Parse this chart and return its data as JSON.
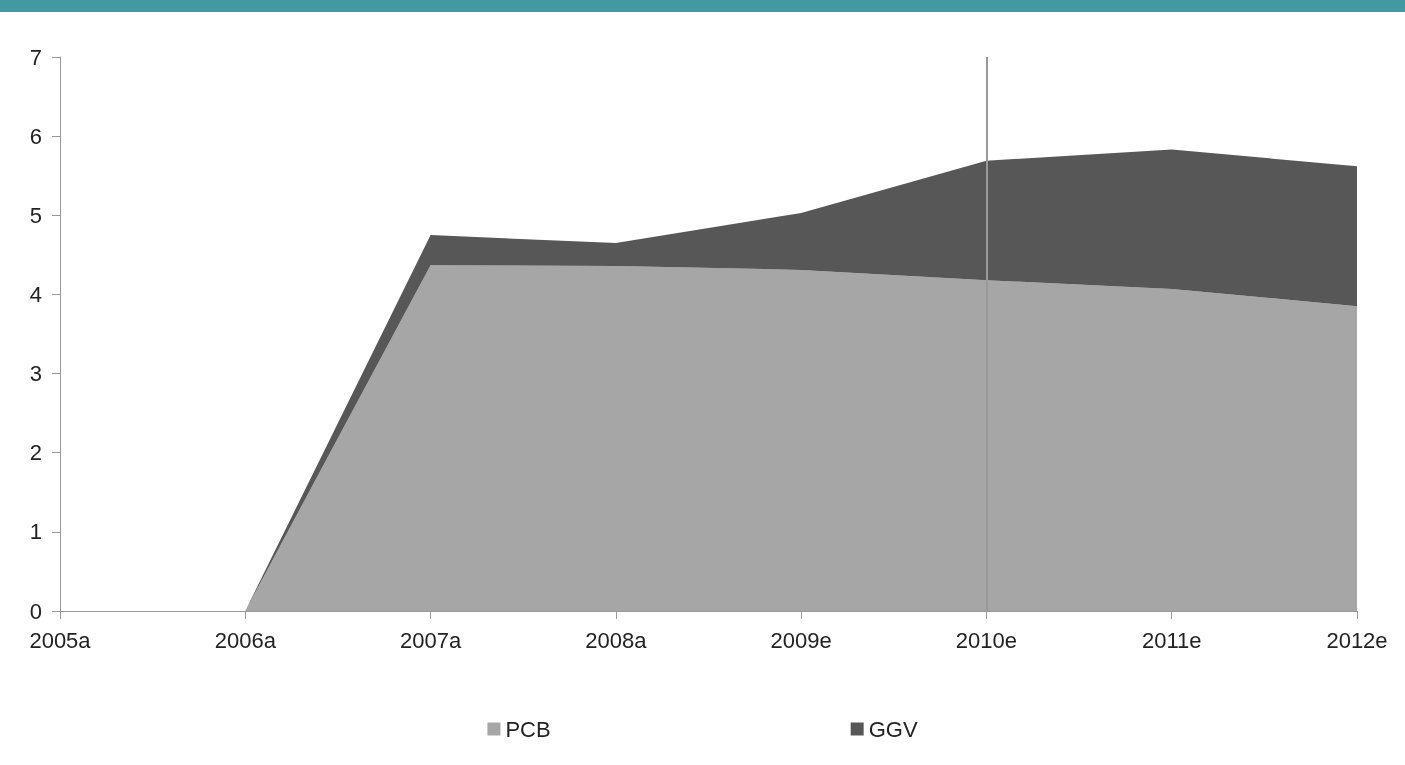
{
  "chart_data": {
    "type": "area",
    "stacked": true,
    "categories": [
      "2005a",
      "2006a",
      "2007a",
      "2008a",
      "2009e",
      "2010e",
      "2011e",
      "2012e"
    ],
    "series": [
      {
        "name": "PCB",
        "color": "#a6a6a6",
        "values": [
          null,
          0,
          4.37,
          4.36,
          4.31,
          4.18,
          4.07,
          3.85
        ]
      },
      {
        "name": "GGV",
        "color": "#575757",
        "values": [
          null,
          0,
          0.38,
          0.29,
          0.72,
          1.51,
          1.76,
          1.77
        ]
      }
    ],
    "ylim": [
      0,
      7
    ],
    "yticks": [
      0,
      1,
      2,
      3,
      4,
      5,
      6,
      7
    ],
    "grid": false,
    "legend": "bottom",
    "ref_lines": [
      {
        "axis": "x",
        "value": "2010e",
        "color": "#999999"
      }
    ]
  }
}
